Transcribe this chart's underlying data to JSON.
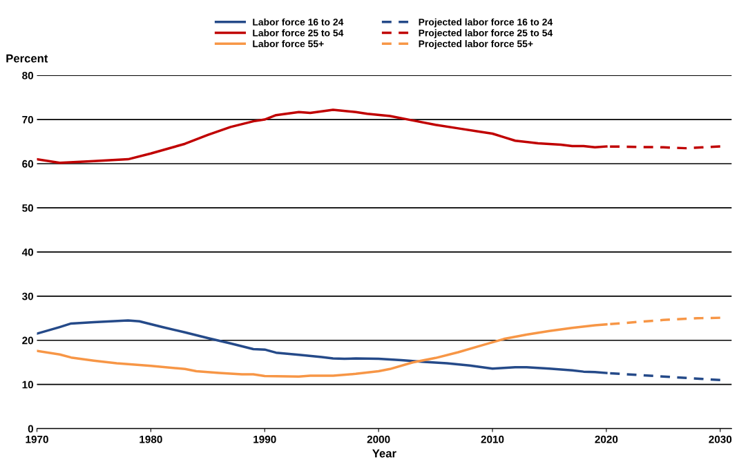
{
  "chart_data": {
    "type": "line",
    "xlabel": "Year",
    "ylabel": "Percent",
    "xlim": [
      1970,
      2031
    ],
    "xticks": [
      1970,
      1980,
      1990,
      2000,
      2010,
      2020,
      2030
    ],
    "ylim": [
      0,
      80
    ],
    "yticks": [
      0,
      10,
      20,
      30,
      40,
      50,
      60,
      70,
      80
    ],
    "grid": "y",
    "legend": "top",
    "marker": "none",
    "series": [
      {
        "name": "Labor force 16 to 24",
        "color": "#254a89",
        "line_style": "solid",
        "x": [
          1970,
          1972,
          1973,
          1975,
          1978,
          1979,
          1981,
          1983,
          1985,
          1987,
          1989,
          1990,
          1991,
          1993,
          1995,
          1996,
          1997,
          1998,
          2000,
          2002,
          2004,
          2006,
          2008,
          2010,
          2012,
          2013,
          2015,
          2017,
          2018,
          2019,
          2020
        ],
        "values": [
          21.5,
          23,
          23.8,
          24.1,
          24.5,
          24.3,
          23,
          21.8,
          20.5,
          19.3,
          18,
          17.9,
          17.2,
          16.7,
          16.2,
          15.9,
          15.8,
          15.9,
          15.8,
          15.5,
          15.1,
          14.8,
          14.3,
          13.6,
          13.9,
          13.9,
          13.6,
          13.2,
          12.9,
          12.8,
          12.6
        ]
      },
      {
        "name": "Labor force 25 to 54",
        "color": "#c00000",
        "line_style": "solid",
        "x": [
          1970,
          1972,
          1975,
          1978,
          1980,
          1983,
          1985,
          1987,
          1989,
          1990,
          1991,
          1993,
          1994,
          1996,
          1998,
          1999,
          2001,
          2003,
          2005,
          2007,
          2009,
          2010,
          2011,
          2012,
          2014,
          2016,
          2017,
          2018,
          2019,
          2020
        ],
        "values": [
          61,
          60.2,
          60.6,
          61,
          62.3,
          64.5,
          66.5,
          68.3,
          69.6,
          70,
          71,
          71.7,
          71.5,
          72.2,
          71.7,
          71.3,
          70.8,
          69.8,
          68.8,
          68,
          67.2,
          66.8,
          66,
          65.2,
          64.6,
          64.3,
          64,
          64,
          63.7,
          63.9
        ]
      },
      {
        "name": "Labor force 55+",
        "color": "#f79646",
        "line_style": "solid",
        "x": [
          1970,
          1972,
          1973,
          1975,
          1977,
          1980,
          1983,
          1984,
          1986,
          1988,
          1989,
          1990,
          1993,
          1994,
          1996,
          1998,
          2000,
          2001,
          2003,
          2005,
          2007,
          2009,
          2011,
          2013,
          2015,
          2017,
          2019,
          2020
        ],
        "values": [
          17.6,
          16.8,
          16.1,
          15.4,
          14.8,
          14.2,
          13.5,
          13,
          12.6,
          12.3,
          12.3,
          11.9,
          11.8,
          12,
          12,
          12.4,
          13,
          13.5,
          15,
          16,
          17.3,
          18.8,
          20.3,
          21.3,
          22.1,
          22.8,
          23.4,
          23.6
        ]
      },
      {
        "name": "Projected labor force 16 to 24",
        "color": "#254a89",
        "line_style": "dashed",
        "x": [
          2020,
          2025,
          2030
        ],
        "values": [
          12.6,
          11.8,
          11.0
        ]
      },
      {
        "name": "Projected labor force 25 to 54",
        "color": "#c00000",
        "line_style": "dashed",
        "x": [
          2020,
          2025,
          2027,
          2030
        ],
        "values": [
          63.9,
          63.7,
          63.5,
          63.9
        ]
      },
      {
        "name": "Projected labor force 55+",
        "color": "#f79646",
        "line_style": "dashed",
        "x": [
          2020,
          2025,
          2028,
          2030
        ],
        "values": [
          23.6,
          24.6,
          25,
          25.1
        ]
      }
    ]
  }
}
